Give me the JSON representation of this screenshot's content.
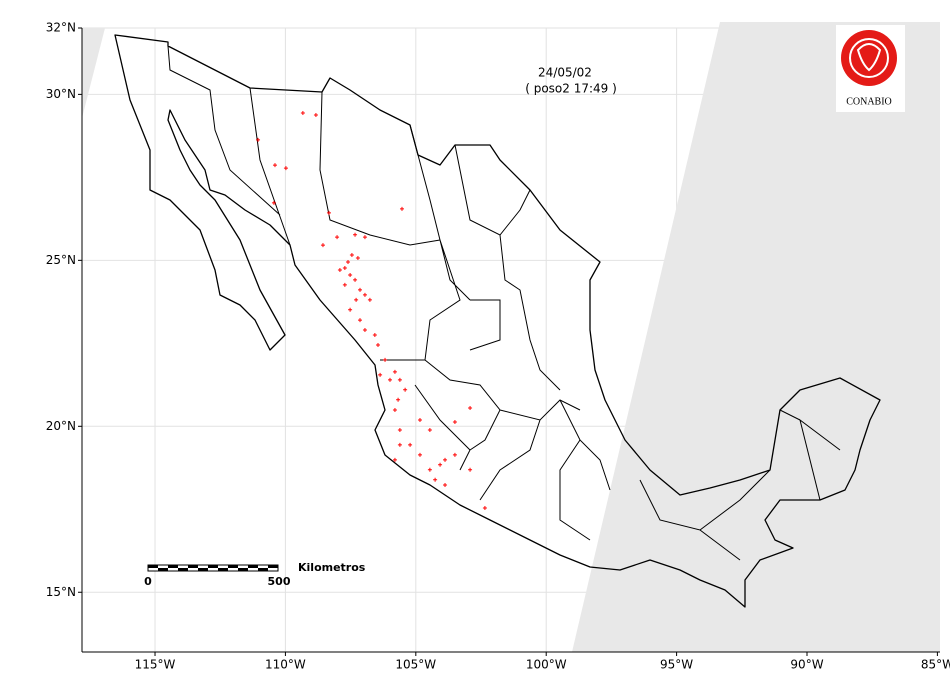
{
  "map": {
    "type": "map",
    "date": "24/05/02",
    "subtitle": "( poso2 17:49 )",
    "logo": "CONABIO",
    "scale": {
      "label": "Kilometros",
      "ticks": [
        0,
        500
      ]
    },
    "xlim": [
      -117.8,
      -84.9
    ],
    "ylim": [
      13.2,
      32
    ],
    "xticks": [
      {
        "value": -115,
        "label": "115°W"
      },
      {
        "value": -110,
        "label": "110°W"
      },
      {
        "value": -105,
        "label": "105°W"
      },
      {
        "value": -100,
        "label": "100°W"
      },
      {
        "value": -95,
        "label": "95°W"
      },
      {
        "value": -90,
        "label": "90°W"
      },
      {
        "value": -85,
        "label": "85°W"
      }
    ],
    "yticks": [
      {
        "value": 15,
        "label": "15°N"
      },
      {
        "value": 20,
        "label": "20°N"
      },
      {
        "value": 25,
        "label": "25°N"
      },
      {
        "value": 30,
        "label": "30°N"
      },
      {
        "value": 32,
        "label": "32°N"
      }
    ],
    "grid": true,
    "hotspot_color": "#ff0000",
    "hotspots": {
      "lon": [
        -111.05,
        -109.33,
        -108.83,
        -110.4,
        -109.98,
        -110.44,
        -108.33,
        -105.53,
        -108.56,
        -108.02,
        -107.6,
        -107.33,
        -106.95,
        -107.91,
        -107.72,
        -107.52,
        -107.33,
        -107.72,
        -107.14,
        -106.95,
        -106.76,
        -107.29,
        -107.52,
        -107.14,
        -106.95,
        -106.57,
        -106.45,
        -106.18,
        -105.8,
        -105.61,
        -105.99,
        -105.41,
        -105.68,
        -105.8,
        -105.61,
        -104.84,
        -104.46,
        -103.5,
        -102.92,
        -105.61,
        -105.22,
        -105.8,
        -104.84,
        -104.46,
        -103.88,
        -103.5,
        -104.07,
        -102.92,
        -103.88,
        -104.26,
        -102.35,
        -106.37,
        -107.22,
        -107.45
      ],
      "lat": [
        28.63,
        29.44,
        29.38,
        27.87,
        27.78,
        26.73,
        26.43,
        26.55,
        25.46,
        25.7,
        24.95,
        25.77,
        25.7,
        24.71,
        24.77,
        24.56,
        24.41,
        24.26,
        24.11,
        23.96,
        23.81,
        23.81,
        23.51,
        23.2,
        22.9,
        22.75,
        22.45,
        22.0,
        21.64,
        21.4,
        21.4,
        21.1,
        20.8,
        20.49,
        19.89,
        20.19,
        19.89,
        20.13,
        20.55,
        19.44,
        19.44,
        18.99,
        19.14,
        18.69,
        18.99,
        19.14,
        18.84,
        18.69,
        18.23,
        18.39,
        17.54,
        21.55,
        25.07,
        25.16
      ]
    }
  }
}
